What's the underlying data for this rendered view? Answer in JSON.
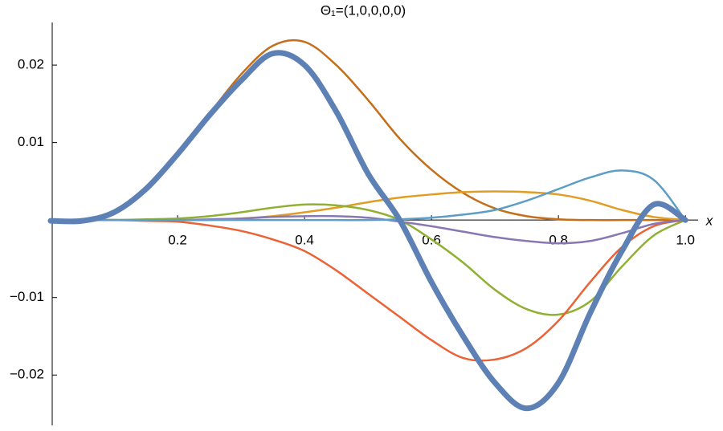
{
  "chart_data": {
    "type": "line",
    "title": "Θ₁=(1,0,0,0,0)",
    "xlabel": "x",
    "x": [
      0,
      0.05,
      0.1,
      0.15,
      0.2,
      0.25,
      0.3,
      0.35,
      0.4,
      0.45,
      0.5,
      0.55,
      0.6,
      0.65,
      0.7,
      0.75,
      0.8,
      0.85,
      0.9,
      0.95,
      1.0
    ],
    "series": [
      {
        "color": "#C56E1A",
        "width": 2.5,
        "values": [
          0,
          0,
          0.001,
          0.004,
          0.0085,
          0.0137,
          0.0188,
          0.0225,
          0.023,
          0.02,
          0.0155,
          0.0105,
          0.0065,
          0.0035,
          0.0015,
          0.0005,
          0.0001,
          0,
          0,
          0,
          0
        ]
      },
      {
        "color": "#E19C24",
        "width": 2.5,
        "values": [
          0,
          0,
          0,
          0,
          0,
          0,
          0.0002,
          0.0005,
          0.001,
          0.0016,
          0.0023,
          0.0029,
          0.0033,
          0.0036,
          0.0037,
          0.0036,
          0.0033,
          0.0025,
          0.0013,
          0.0004,
          0
        ]
      },
      {
        "color": "#8FB032",
        "width": 2.5,
        "values": [
          0,
          0,
          0,
          0.0001,
          0.0002,
          0.0005,
          0.001,
          0.0016,
          0.002,
          0.0019,
          0.0013,
          0,
          -0.0025,
          -0.0055,
          -0.009,
          -0.0115,
          -0.0122,
          -0.0105,
          -0.006,
          -0.002,
          0
        ]
      },
      {
        "color": "#EB6235",
        "width": 2.5,
        "values": [
          0,
          0,
          0,
          -0.0001,
          -0.0002,
          -0.0007,
          -0.0014,
          -0.0025,
          -0.004,
          -0.0065,
          -0.0095,
          -0.0125,
          -0.0155,
          -0.0178,
          -0.018,
          -0.0165,
          -0.013,
          -0.008,
          -0.0035,
          -0.0008,
          0
        ]
      },
      {
        "color": "#8778B3",
        "width": 2.5,
        "values": [
          0,
          0,
          0,
          0,
          0,
          0.0001,
          0.0002,
          0.0004,
          0.0005,
          0.0005,
          0.0003,
          -0.0002,
          -0.0008,
          -0.0015,
          -0.0022,
          -0.0027,
          -0.003,
          -0.0027,
          -0.0017,
          -0.0005,
          0
        ]
      },
      {
        "color": "#5D9EC7",
        "width": 2.5,
        "values": [
          0,
          0,
          0,
          0,
          0,
          0,
          0,
          0,
          0,
          0,
          0,
          0.0001,
          0.0003,
          0.0007,
          0.0013,
          0.0025,
          0.004,
          0.0055,
          0.0064,
          0.0052,
          0
        ]
      },
      {
        "color": "#5E81B5",
        "width": 7,
        "values": [
          -0.0001,
          -0.0001,
          0.001,
          0.004,
          0.0085,
          0.0135,
          0.018,
          0.0215,
          0.02,
          0.014,
          0.006,
          0,
          -0.008,
          -0.015,
          -0.021,
          -0.0243,
          -0.021,
          -0.012,
          -0.004,
          0.002,
          0
        ]
      }
    ],
    "xlim": [
      0,
      1.02
    ],
    "xticks": [
      0.2,
      0.4,
      0.6,
      0.8,
      {
        "value": 1.0,
        "label": "1.0"
      }
    ],
    "ylim": [
      -0.0265,
      0.0255
    ],
    "yticks": [
      {
        "value": -0.02,
        "label": "−0.02"
      },
      {
        "value": -0.01,
        "label": "−0.01"
      },
      0.01,
      0.02
    ]
  }
}
